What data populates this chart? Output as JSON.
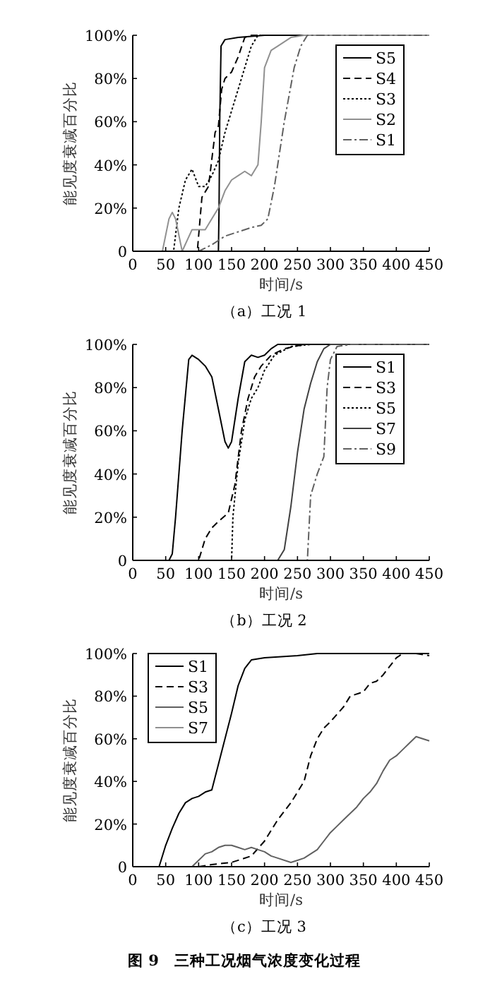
{
  "chart_data": [
    {
      "type": "line",
      "title": "（a）工况 1",
      "xlabel": "时间/s",
      "ylabel": "能见度衰减百分比",
      "xlim": [
        0,
        450
      ],
      "ylim": [
        0,
        100
      ],
      "xticks": [
        0,
        50,
        100,
        150,
        200,
        250,
        300,
        350,
        400,
        450
      ],
      "yticks": [
        {
          "value": 0,
          "label": "0"
        },
        {
          "value": 20,
          "label": "20%"
        },
        {
          "value": 40,
          "label": "40%"
        },
        {
          "value": 60,
          "label": "60%"
        },
        {
          "value": 80,
          "label": "80%"
        },
        {
          "value": 100,
          "label": "100%"
        }
      ],
      "legend": "top right",
      "grid": false,
      "series": [
        {
          "name": "S5",
          "color": "#000000",
          "line_style": "solid",
          "x": [
            0,
            130,
            131,
            132,
            134,
            140,
            160,
            200,
            450
          ],
          "values": [
            0,
            0,
            20,
            60,
            95,
            98,
            99,
            100,
            100
          ]
        },
        {
          "name": "S4",
          "color": "#000000",
          "line_style": "dashed",
          "x": [
            0,
            98,
            105,
            115,
            125,
            130,
            135,
            140,
            150,
            160,
            170,
            180,
            450
          ],
          "values": [
            0,
            0,
            25,
            30,
            55,
            58,
            75,
            80,
            83,
            90,
            99,
            100,
            100
          ]
        },
        {
          "name": "S3",
          "color": "#000000",
          "line_style": "dotted",
          "x": [
            0,
            62,
            70,
            80,
            90,
            100,
            110,
            120,
            130,
            140,
            150,
            160,
            170,
            180,
            190,
            450
          ],
          "values": [
            0,
            0,
            20,
            33,
            38,
            30,
            30,
            35,
            42,
            55,
            65,
            75,
            85,
            95,
            100,
            100
          ]
        },
        {
          "name": "S2",
          "color": "#909090",
          "line_style": "solid",
          "x": [
            0,
            45,
            55,
            60,
            65,
            75,
            90,
            100,
            110,
            120,
            130,
            140,
            150,
            160,
            170,
            180,
            190,
            195,
            200,
            210,
            220,
            240,
            260,
            450
          ],
          "values": [
            0,
            0,
            15,
            18,
            15,
            0,
            10,
            10,
            10,
            15,
            20,
            28,
            33,
            35,
            37,
            35,
            40,
            60,
            85,
            93,
            95,
            99,
            100,
            100
          ]
        },
        {
          "name": "S1",
          "color": "#606060",
          "line_style": "dashdot",
          "x": [
            0,
            100,
            120,
            140,
            160,
            180,
            195,
            205,
            215,
            230,
            245,
            255,
            265,
            450
          ],
          "values": [
            0,
            0,
            3,
            7,
            9,
            11,
            12,
            15,
            30,
            60,
            85,
            95,
            100,
            100
          ]
        }
      ]
    },
    {
      "type": "line",
      "title": "（b）工况 2",
      "xlabel": "时间/s",
      "ylabel": "能见度衰减百分比",
      "xlim": [
        0,
        450
      ],
      "ylim": [
        0,
        100
      ],
      "xticks": [
        0,
        50,
        100,
        150,
        200,
        250,
        300,
        350,
        400,
        450
      ],
      "yticks": [
        {
          "value": 0,
          "label": "0"
        },
        {
          "value": 20,
          "label": "20%"
        },
        {
          "value": 40,
          "label": "40%"
        },
        {
          "value": 60,
          "label": "60%"
        },
        {
          "value": 80,
          "label": "80%"
        },
        {
          "value": 100,
          "label": "100%"
        }
      ],
      "legend": "right",
      "grid": false,
      "series": [
        {
          "name": "S1",
          "color": "#000000",
          "line_style": "solid",
          "x": [
            0,
            55,
            60,
            65,
            75,
            85,
            90,
            100,
            110,
            120,
            130,
            140,
            145,
            150,
            160,
            170,
            180,
            190,
            200,
            210,
            220,
            450
          ],
          "values": [
            0,
            0,
            3,
            20,
            60,
            93,
            95,
            93,
            90,
            85,
            70,
            55,
            52,
            55,
            75,
            92,
            95,
            94,
            95,
            98,
            100,
            100
          ]
        },
        {
          "name": "S3",
          "color": "#000000",
          "line_style": "dashed",
          "x": [
            0,
            100,
            110,
            120,
            130,
            145,
            155,
            165,
            175,
            185,
            195,
            210,
            230,
            260,
            450
          ],
          "values": [
            0,
            0,
            10,
            15,
            18,
            22,
            35,
            60,
            75,
            85,
            90,
            95,
            98,
            100,
            100
          ]
        },
        {
          "name": "S5",
          "color": "#000000",
          "line_style": "dotted",
          "x": [
            0,
            150,
            152,
            160,
            170,
            180,
            190,
            200,
            215,
            240,
            270,
            450
          ],
          "values": [
            0,
            0,
            20,
            45,
            65,
            75,
            80,
            88,
            95,
            99,
            100,
            100
          ]
        },
        {
          "name": "S7",
          "color": "#404040",
          "line_style": "solid",
          "x": [
            0,
            220,
            230,
            240,
            250,
            260,
            270,
            280,
            290,
            300,
            450
          ],
          "values": [
            0,
            0,
            5,
            25,
            50,
            70,
            82,
            92,
            98,
            100,
            100
          ]
        },
        {
          "name": "S9",
          "color": "#606060",
          "line_style": "dashdot",
          "x": [
            0,
            265,
            270,
            280,
            290,
            295,
            300,
            310,
            330,
            450
          ],
          "values": [
            0,
            0,
            30,
            40,
            48,
            80,
            93,
            99,
            100,
            100
          ]
        }
      ]
    },
    {
      "type": "line",
      "title": "（c）工况 3",
      "xlabel": "时间/s",
      "ylabel": "能见度衰减百分比",
      "xlim": [
        0,
        450
      ],
      "ylim": [
        0,
        100
      ],
      "xticks": [
        0,
        50,
        100,
        150,
        200,
        250,
        300,
        350,
        400,
        450
      ],
      "yticks": [
        {
          "value": 0,
          "label": "0"
        },
        {
          "value": 20,
          "label": "20%"
        },
        {
          "value": 40,
          "label": "40%"
        },
        {
          "value": 60,
          "label": "60%"
        },
        {
          "value": 80,
          "label": "80%"
        },
        {
          "value": 100,
          "label": "100%"
        }
      ],
      "legend": "top left",
      "grid": false,
      "annotations": [
        "图 9　三种工况烟气浓度变化过程"
      ],
      "series": [
        {
          "name": "S1",
          "color": "#000000",
          "line_style": "solid",
          "x": [
            0,
            40,
            50,
            60,
            70,
            80,
            90,
            100,
            110,
            120,
            130,
            140,
            150,
            160,
            170,
            180,
            200,
            250,
            280,
            450
          ],
          "values": [
            0,
            0,
            10,
            18,
            25,
            30,
            32,
            33,
            35,
            36,
            48,
            60,
            72,
            85,
            93,
            97,
            98,
            99,
            100,
            100
          ]
        },
        {
          "name": "S3",
          "color": "#000000",
          "line_style": "dashed",
          "x": [
            100,
            120,
            150,
            180,
            200,
            220,
            240,
            260,
            270,
            280,
            290,
            300,
            320,
            330,
            350,
            360,
            370,
            380,
            400,
            410,
            430,
            450
          ],
          "values": [
            0,
            1,
            2,
            5,
            12,
            22,
            30,
            40,
            52,
            60,
            65,
            68,
            75,
            80,
            82,
            86,
            87,
            90,
            98,
            100,
            100,
            99
          ]
        },
        {
          "name": "S5",
          "color": "#606060",
          "line_style": "solid",
          "x": [
            90,
            100,
            110,
            120,
            130,
            140,
            150,
            160,
            170,
            180,
            190,
            200,
            210,
            220,
            240,
            250,
            260,
            270,
            280,
            290,
            300,
            310,
            320,
            330,
            340,
            350,
            360,
            370,
            380,
            390,
            400,
            410,
            420,
            430,
            440,
            450
          ],
          "values": [
            0,
            3,
            6,
            7,
            9,
            10,
            10,
            9,
            8,
            9,
            8,
            7,
            5,
            4,
            2,
            3,
            4,
            6,
            8,
            12,
            16,
            19,
            22,
            25,
            28,
            32,
            35,
            39,
            45,
            50,
            52,
            55,
            58,
            61,
            60,
            59
          ]
        },
        {
          "name": "S7",
          "color": "#909090",
          "line_style": "solid"
        }
      ]
    }
  ]
}
